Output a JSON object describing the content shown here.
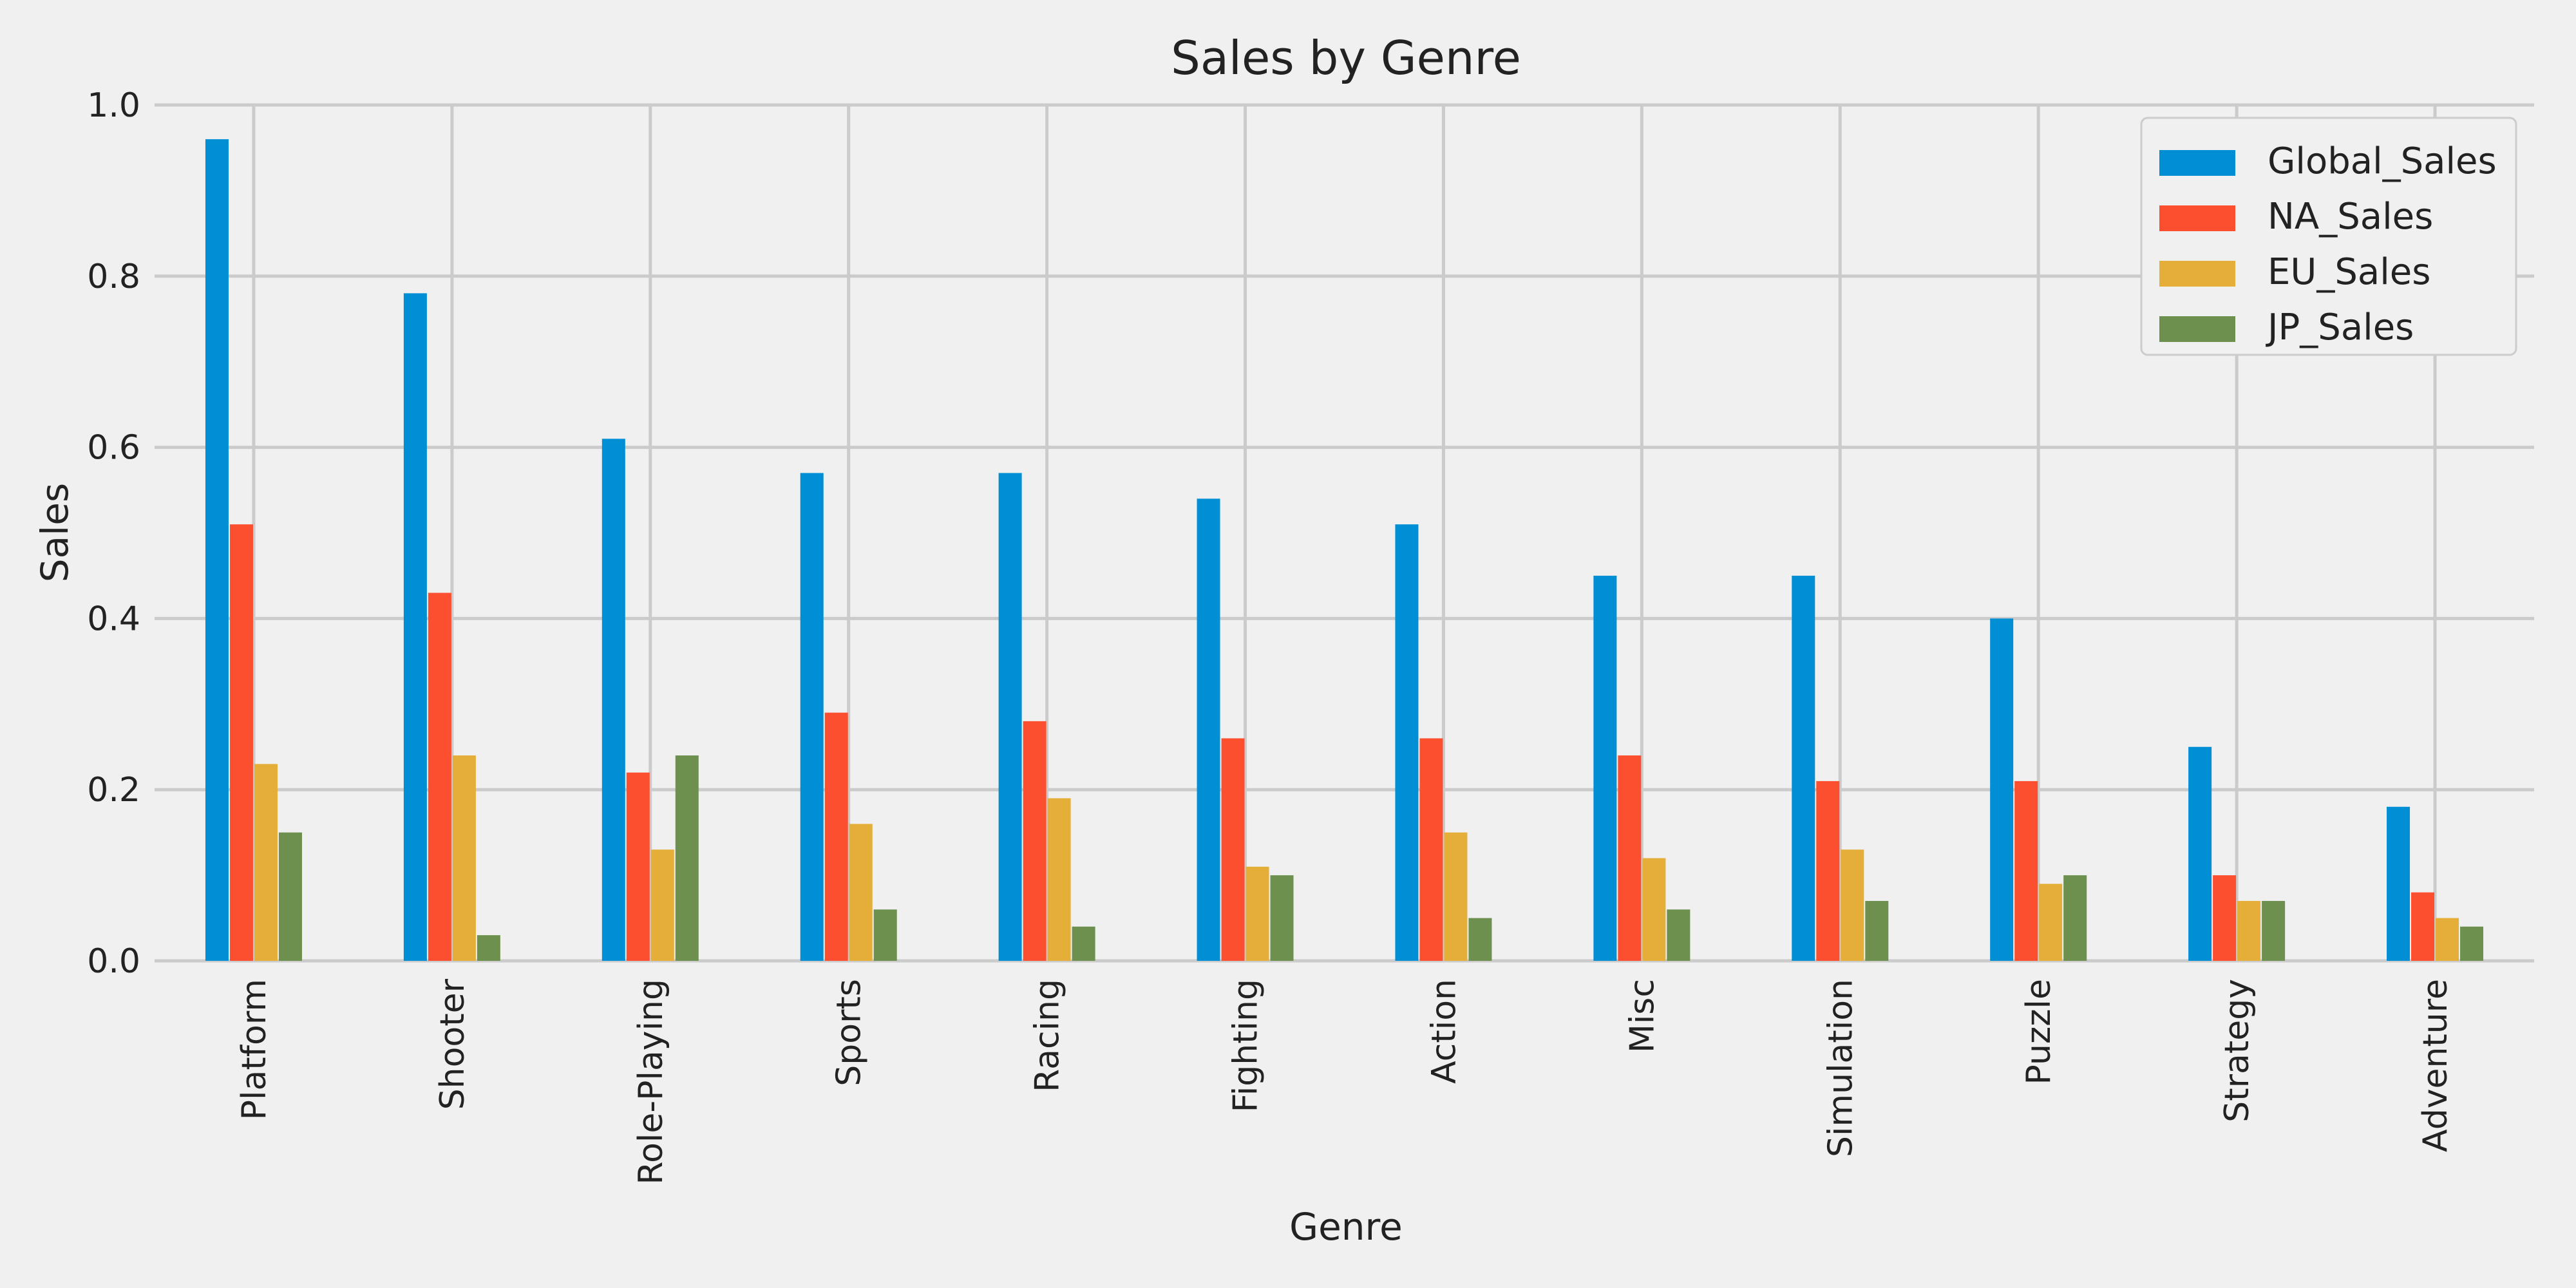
{
  "chart_data": {
    "type": "bar",
    "title": "Sales by Genre",
    "xlabel": "Genre",
    "ylabel": "Sales",
    "ylim": [
      0,
      1.0
    ],
    "yticks": [
      "0.0",
      "0.2",
      "0.4",
      "0.6",
      "0.8",
      "1.0"
    ],
    "grid": true,
    "legend_position": "top-right",
    "categories": [
      "Platform",
      "Shooter",
      "Role-Playing",
      "Sports",
      "Racing",
      "Fighting",
      "Action",
      "Misc",
      "Simulation",
      "Puzzle",
      "Strategy",
      "Adventure"
    ],
    "series": [
      {
        "name": "Global_Sales",
        "color": "#008fd5",
        "values": [
          0.96,
          0.78,
          0.61,
          0.57,
          0.57,
          0.54,
          0.51,
          0.45,
          0.45,
          0.4,
          0.25,
          0.18
        ]
      },
      {
        "name": "NA_Sales",
        "color": "#fc4f30",
        "values": [
          0.51,
          0.43,
          0.22,
          0.29,
          0.28,
          0.26,
          0.26,
          0.24,
          0.21,
          0.21,
          0.1,
          0.08
        ]
      },
      {
        "name": "EU_Sales",
        "color": "#e5ae38",
        "values": [
          0.23,
          0.24,
          0.13,
          0.16,
          0.19,
          0.11,
          0.15,
          0.12,
          0.13,
          0.09,
          0.07,
          0.05
        ]
      },
      {
        "name": "JP_Sales",
        "color": "#6d904f",
        "values": [
          0.15,
          0.03,
          0.24,
          0.06,
          0.04,
          0.1,
          0.05,
          0.06,
          0.07,
          0.1,
          0.07,
          0.04
        ]
      }
    ]
  }
}
